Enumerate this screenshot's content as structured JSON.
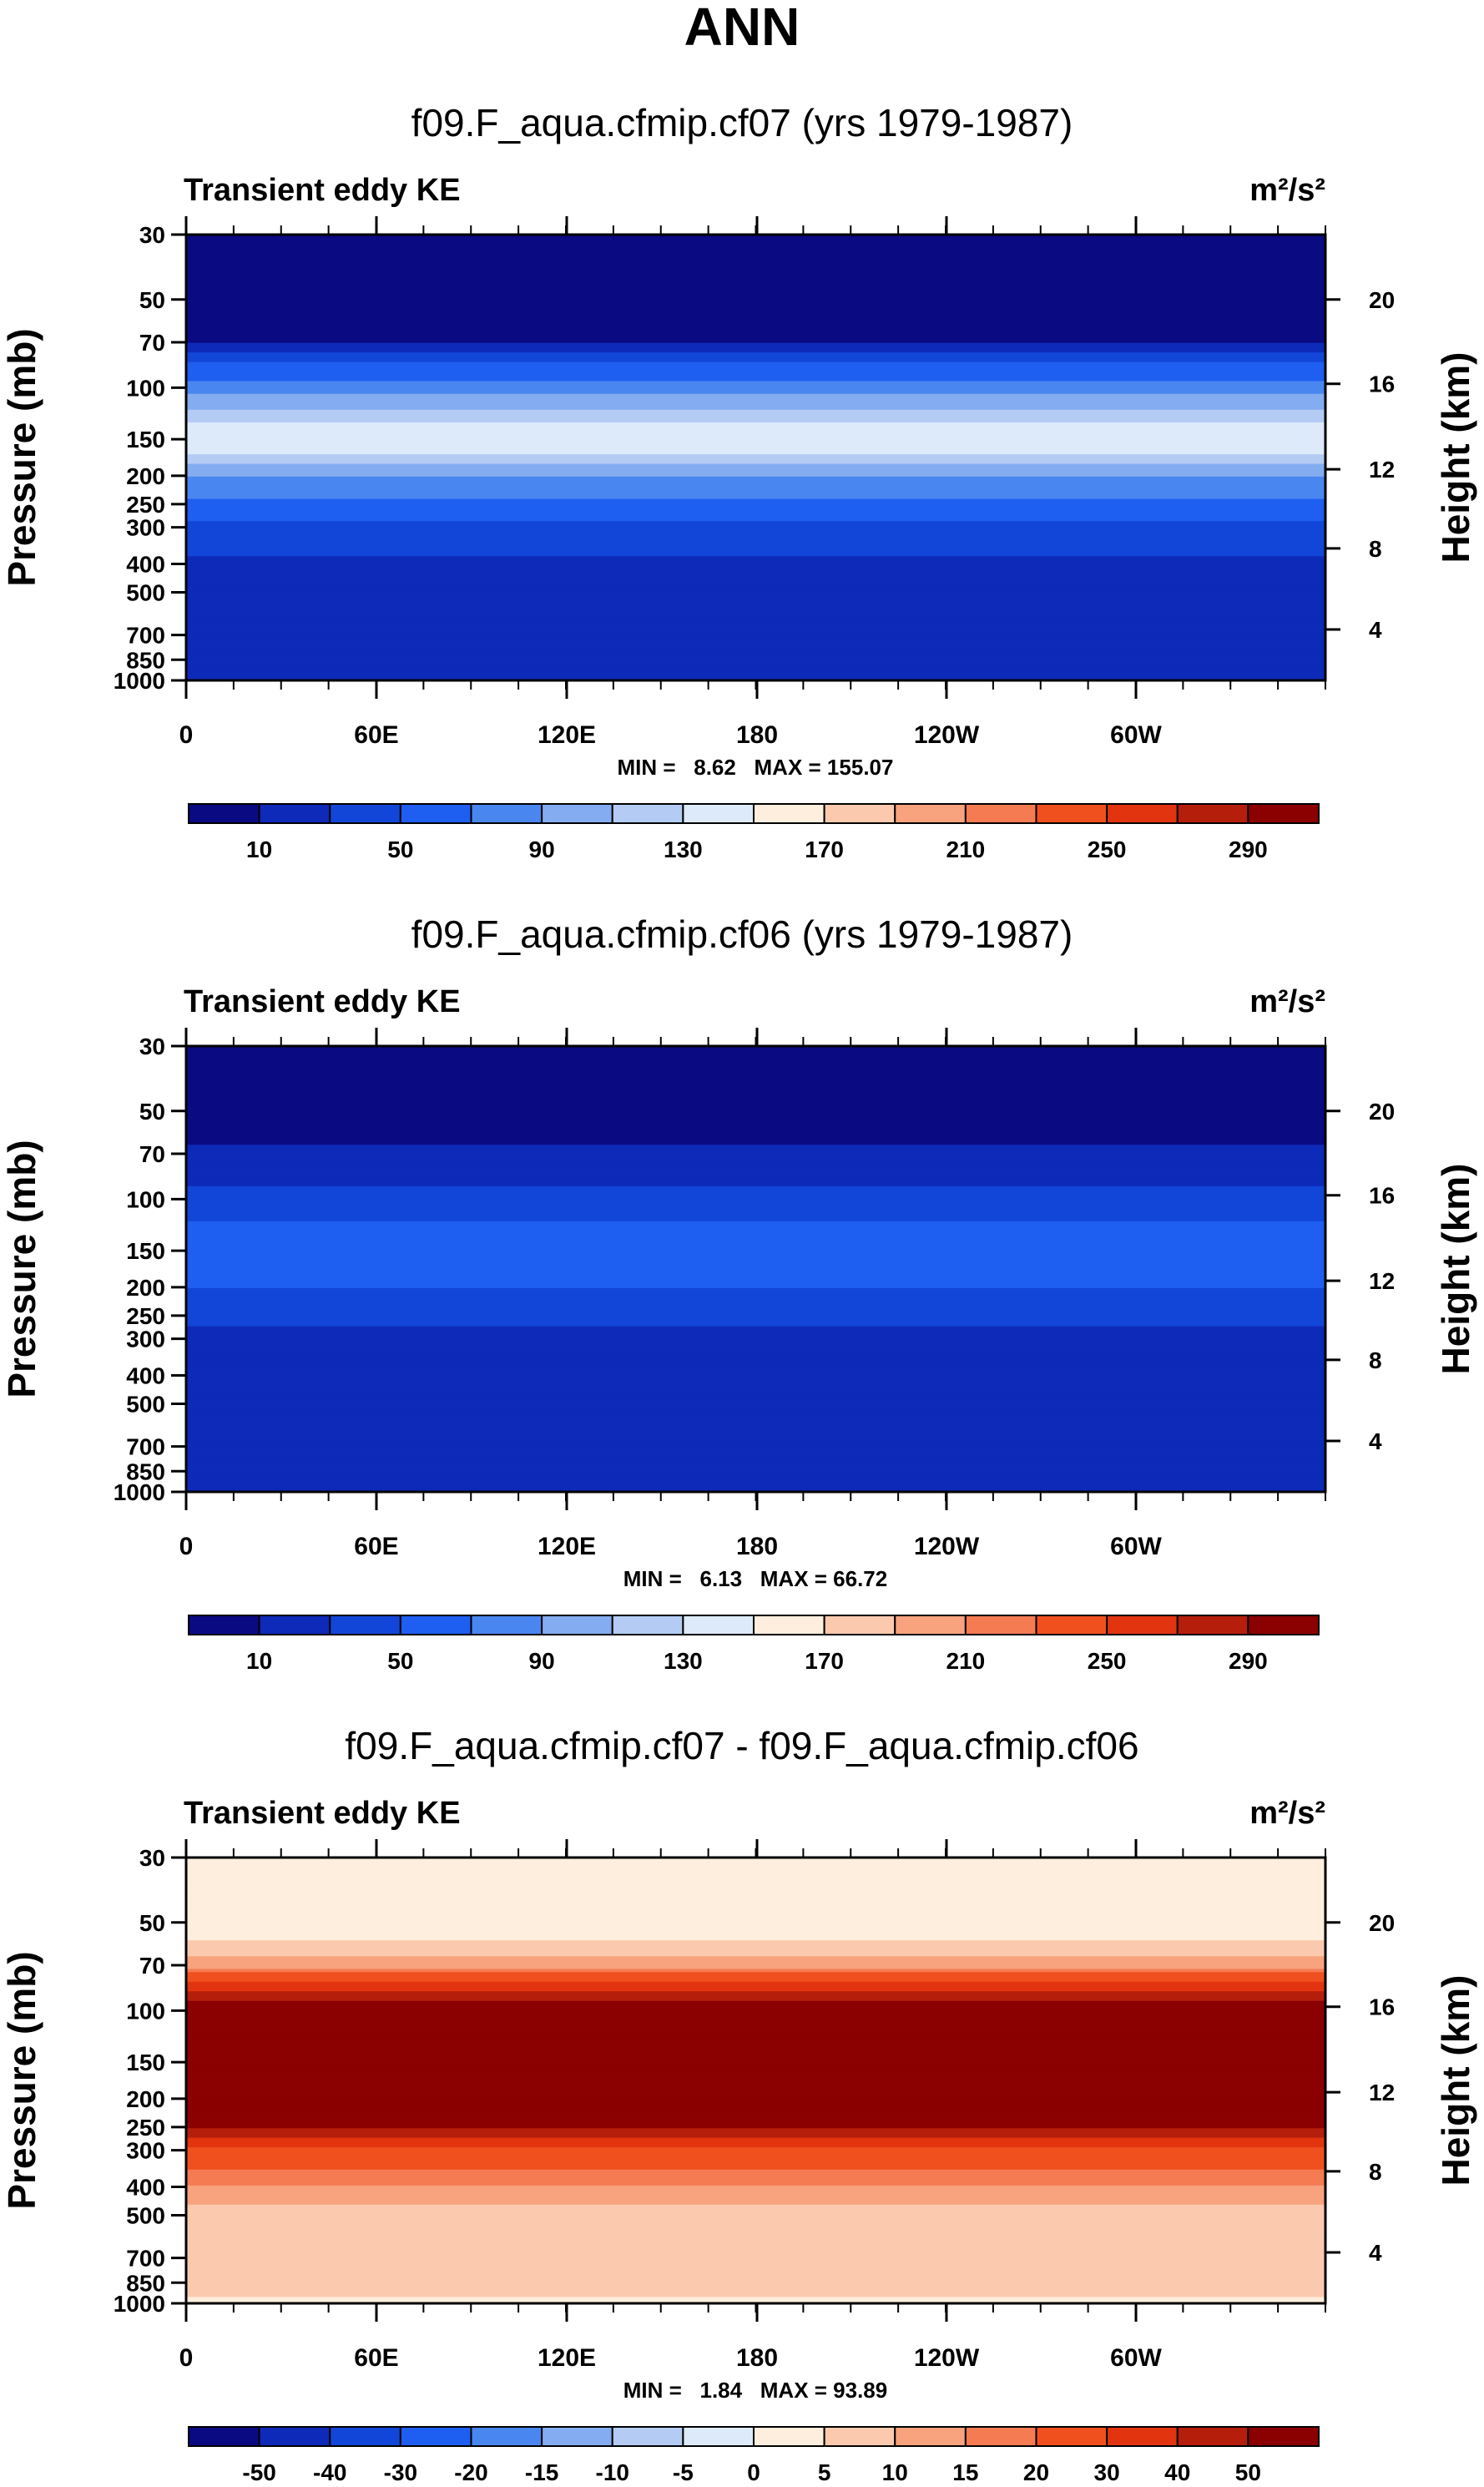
{
  "page_title": "ANN",
  "colorbar_palette": [
    "#0a0a82",
    "#0d2ab8",
    "#1246d8",
    "#1e5ef0",
    "#4a86f0",
    "#84acf0",
    "#b4ccf4",
    "#dceafa",
    "#fdeedd",
    "#fbcaae",
    "#f8a27e",
    "#f47b52",
    "#f0501e",
    "#e33410",
    "#b51e0a",
    "#8b0000"
  ],
  "chart_data": [
    {
      "type": "heatmap",
      "title": "f09.F_aqua.cfmip.cf07 (yrs 1979-1987)",
      "subtitle": "Transient eddy KE",
      "units": "m²/s²",
      "ylabel": "Pressure (mb)",
      "ylabel_right": "Height (km)",
      "x_ticks": [
        "0",
        "60E",
        "120E",
        "180",
        "120W",
        "60W"
      ],
      "y_ticks": [
        "30",
        "50",
        "70",
        "100",
        "150",
        "200",
        "250",
        "300",
        "400",
        "500",
        "700",
        "850",
        "1000"
      ],
      "y_right_ticks": [
        "20",
        "16",
        "12",
        "8",
        "4"
      ],
      "stats": "MIN =   8.62   MAX = 155.07",
      "min": 8.62,
      "max": 155.07,
      "colorbar_labels": [
        "10",
        "50",
        "90",
        "130",
        "170",
        "210",
        "250",
        "290"
      ],
      "levels": [
        0,
        10,
        30,
        50,
        70,
        90,
        110,
        130,
        150,
        170,
        190,
        210,
        230,
        250,
        270,
        290
      ],
      "profile": [
        {
          "p": 30,
          "v": 5
        },
        {
          "p": 60,
          "v": 5
        },
        {
          "p": 70,
          "v": 8
        },
        {
          "p": 80,
          "v": 45
        },
        {
          "p": 100,
          "v": 80
        },
        {
          "p": 120,
          "v": 110
        },
        {
          "p": 140,
          "v": 140
        },
        {
          "p": 150,
          "v": 145
        },
        {
          "p": 170,
          "v": 130
        },
        {
          "p": 200,
          "v": 90
        },
        {
          "p": 250,
          "v": 65
        },
        {
          "p": 300,
          "v": 45
        },
        {
          "p": 400,
          "v": 25
        },
        {
          "p": 500,
          "v": 20
        },
        {
          "p": 1000,
          "v": 20
        }
      ]
    },
    {
      "type": "heatmap",
      "title": "f09.F_aqua.cfmip.cf06 (yrs 1979-1987)",
      "subtitle": "Transient eddy KE",
      "units": "m²/s²",
      "ylabel": "Pressure (mb)",
      "ylabel_right": "Height (km)",
      "x_ticks": [
        "0",
        "60E",
        "120E",
        "180",
        "120W",
        "60W"
      ],
      "y_ticks": [
        "30",
        "50",
        "70",
        "100",
        "150",
        "200",
        "250",
        "300",
        "400",
        "500",
        "700",
        "850",
        "1000"
      ],
      "y_right_ticks": [
        "20",
        "16",
        "12",
        "8",
        "4"
      ],
      "stats": "MIN =   6.13   MAX = 66.72",
      "min": 6.13,
      "max": 66.72,
      "colorbar_labels": [
        "10",
        "50",
        "90",
        "130",
        "170",
        "210",
        "250",
        "290"
      ],
      "levels": [
        0,
        10,
        30,
        50,
        70,
        90,
        110,
        130,
        150,
        170,
        190,
        210,
        230,
        250,
        270,
        290
      ],
      "profile": [
        {
          "p": 30,
          "v": 5
        },
        {
          "p": 60,
          "v": 5
        },
        {
          "p": 70,
          "v": 15
        },
        {
          "p": 90,
          "v": 30
        },
        {
          "p": 120,
          "v": 50
        },
        {
          "p": 150,
          "v": 62
        },
        {
          "p": 180,
          "v": 55
        },
        {
          "p": 250,
          "v": 40
        },
        {
          "p": 300,
          "v": 20
        },
        {
          "p": 1000,
          "v": 20
        }
      ]
    },
    {
      "type": "heatmap",
      "title": "f09.F_aqua.cfmip.cf07 - f09.F_aqua.cfmip.cf06",
      "subtitle": "Transient eddy KE",
      "units": "m²/s²",
      "ylabel": "Pressure (mb)",
      "ylabel_right": "Height (km)",
      "x_ticks": [
        "0",
        "60E",
        "120E",
        "180",
        "120W",
        "60W"
      ],
      "y_ticks": [
        "30",
        "50",
        "70",
        "100",
        "150",
        "200",
        "250",
        "300",
        "400",
        "500",
        "700",
        "850",
        "1000"
      ],
      "y_right_ticks": [
        "20",
        "16",
        "12",
        "8",
        "4"
      ],
      "stats": "MIN =   1.84   MAX = 93.89",
      "min": 1.84,
      "max": 93.89,
      "colorbar_labels": [
        "-50",
        "-40",
        "-30",
        "-20",
        "-15",
        "-10",
        "-5",
        "0",
        "5",
        "10",
        "15",
        "20",
        "30",
        "40",
        "50"
      ],
      "levels": [
        -100,
        -50,
        -40,
        -30,
        -20,
        -15,
        -10,
        -5,
        0,
        5,
        10,
        15,
        20,
        30,
        40,
        50
      ],
      "profile": [
        {
          "p": 30,
          "v": 2
        },
        {
          "p": 55,
          "v": 3
        },
        {
          "p": 60,
          "v": 7
        },
        {
          "p": 70,
          "v": 12
        },
        {
          "p": 80,
          "v": 30
        },
        {
          "p": 100,
          "v": 60
        },
        {
          "p": 200,
          "v": 80
        },
        {
          "p": 250,
          "v": 50
        },
        {
          "p": 300,
          "v": 28
        },
        {
          "p": 400,
          "v": 14
        },
        {
          "p": 500,
          "v": 7
        },
        {
          "p": 900,
          "v": 7
        },
        {
          "p": 1000,
          "v": 3
        }
      ]
    }
  ]
}
